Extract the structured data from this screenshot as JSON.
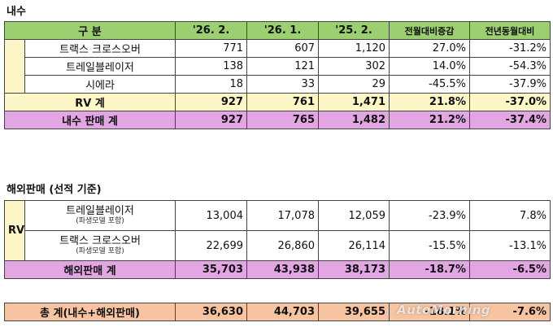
{
  "domestic": {
    "title": "내수",
    "headers": [
      "구  분",
      "'26. 2.",
      "'26. 1.",
      "'25. 2.",
      "전월대비증감",
      "전년동월대비"
    ],
    "rows": [
      {
        "name": "트랙스 크로스오버",
        "v1": "771",
        "v2": "607",
        "v3": "1,120",
        "mom": "27.0%",
        "yoy": "-31.2%"
      },
      {
        "name": "트레일블레이저",
        "v1": "138",
        "v2": "121",
        "v3": "302",
        "mom": "14.0%",
        "yoy": "-54.3%"
      },
      {
        "name": "시에라",
        "v1": "18",
        "v2": "33",
        "v3": "29",
        "mom": "-45.5%",
        "yoy": "-37.9%"
      }
    ],
    "rv_total": {
      "name": "RV 계",
      "v1": "927",
      "v2": "761",
      "v3": "1,471",
      "mom": "21.8%",
      "yoy": "-37.0%"
    },
    "total": {
      "name": "내수 판매 계",
      "v1": "927",
      "v2": "765",
      "v3": "1,482",
      "mom": "21.2%",
      "yoy": "-37.4%"
    }
  },
  "export": {
    "title": "해외판매 (선적 기준)",
    "rv_label": "RV",
    "rows": [
      {
        "name": "트레일블레이저",
        "note": "(파생모델 포함)",
        "v1": "13,004",
        "v2": "17,078",
        "v3": "12,059",
        "mom": "-23.9%",
        "yoy": "7.8%"
      },
      {
        "name": "트랙스 크로스오버",
        "note": "(파생모델 포함)",
        "v1": "22,699",
        "v2": "26,860",
        "v3": "26,114",
        "mom": "-15.5%",
        "yoy": "-13.1%"
      }
    ],
    "total": {
      "name": "해외판매 계",
      "v1": "35,703",
      "v2": "43,938",
      "v3": "38,173",
      "mom": "-18.7%",
      "yoy": "-6.5%"
    }
  },
  "grand_total": {
    "name": "총  계(내수+해외판매)",
    "v1": "36,630",
    "v2": "44,703",
    "v3": "39,655",
    "mom": "-18.1%",
    "yoy": "-7.6%"
  },
  "watermark": "AutoMorning"
}
